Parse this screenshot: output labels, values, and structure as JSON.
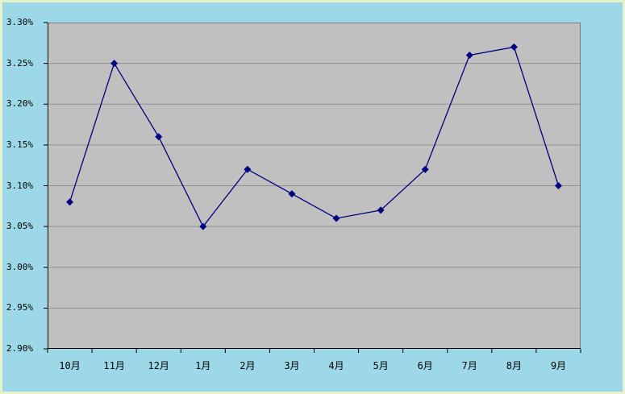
{
  "page": {
    "border_color": "#E7F2CD"
  },
  "chart": {
    "background_color": "#9DD8E8",
    "plot_background_color": "#C0C0C0",
    "gridline_color": "#8F8F8F",
    "plot_border_color": "#7A7A7A",
    "axis_color": "#000000",
    "series_color": "#000080",
    "label_color": "#000000",
    "marker_shape": "diamond"
  },
  "chart_data": {
    "type": "line",
    "title": "",
    "xlabel": "",
    "ylabel": "",
    "categories": [
      "10月",
      "11月",
      "12月",
      "1月",
      "2月",
      "3月",
      "4月",
      "5月",
      "6月",
      "7月",
      "8月",
      "9月"
    ],
    "series": [
      {
        "name": "",
        "values": [
          3.08,
          3.25,
          3.16,
          3.05,
          3.12,
          3.09,
          3.06,
          3.07,
          3.12,
          3.26,
          3.27,
          3.1
        ]
      }
    ],
    "value_unit": "%",
    "ylim": [
      2.9,
      3.3
    ],
    "ytick_step": 0.05,
    "ytick_labels": [
      "3.30%",
      "3.25%",
      "3.20%",
      "3.15%",
      "3.10%",
      "3.05%",
      "3.00%",
      "2.95%",
      "2.90%"
    ],
    "grid": true,
    "legend": "none",
    "marker": "diamond"
  }
}
